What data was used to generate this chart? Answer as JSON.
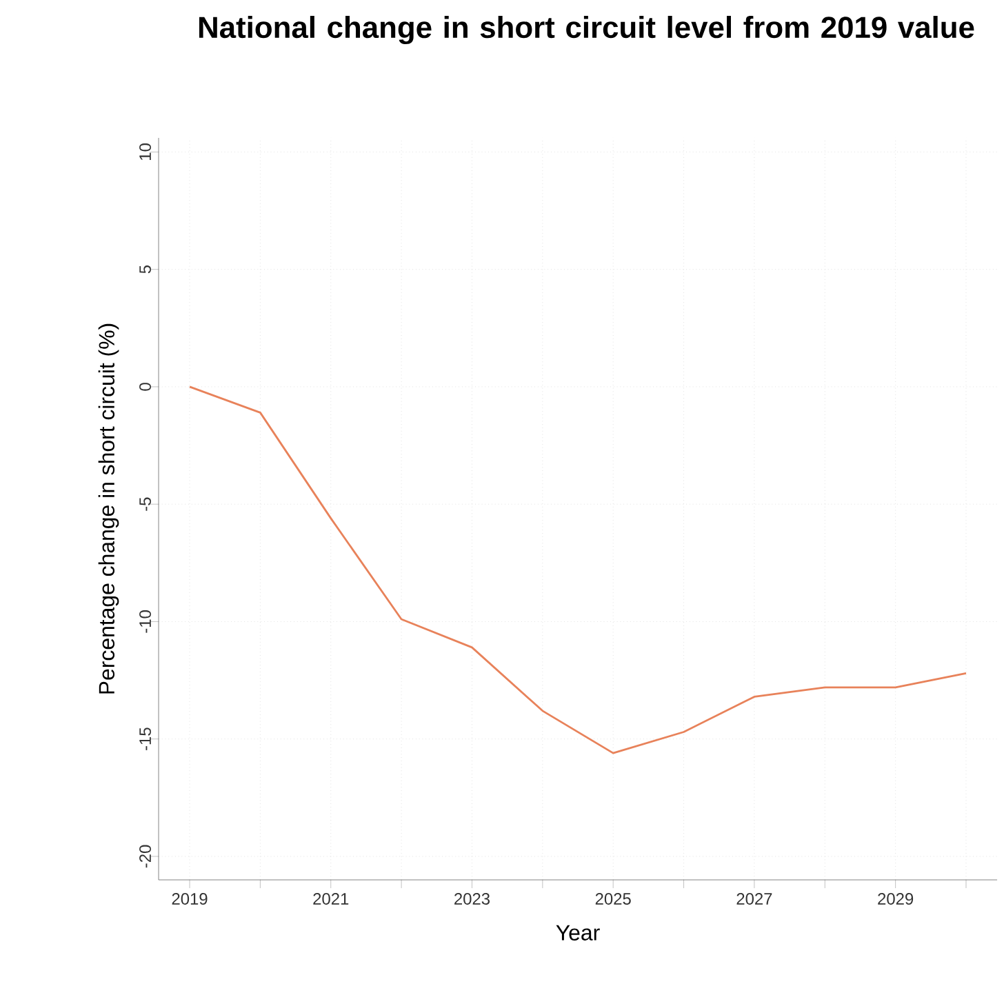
{
  "chart_data": {
    "type": "line",
    "title": "National change in short circuit level from 2019 value",
    "xlabel": "Year",
    "ylabel": "Percentage change in short circuit (%)",
    "x": [
      2019,
      2020,
      2021,
      2022,
      2023,
      2024,
      2025,
      2026,
      2027,
      2028,
      2029,
      2030
    ],
    "series": [
      {
        "color": "#e8825a",
        "values": [
          0,
          -1.1,
          -5.6,
          -9.9,
          -11.1,
          -13.8,
          -15.6,
          -14.7,
          -13.2,
          -12.8,
          -12.8,
          -12.2
        ]
      }
    ],
    "xlim": [
      2018.56,
      2030.44
    ],
    "ylim": [
      -21,
      10.6
    ],
    "xticks": [
      2019,
      {
        "value": 2020,
        "label": null
      },
      2021,
      {
        "value": 2022,
        "label": null
      },
      2023,
      {
        "value": 2024,
        "label": null
      },
      2025,
      {
        "value": 2026,
        "label": null
      },
      2027,
      {
        "value": 2028,
        "label": null
      },
      2029,
      {
        "value": 2030,
        "label": null
      }
    ],
    "yticks": [
      -20,
      -15,
      -10,
      -5,
      0,
      5,
      10
    ],
    "grid": true,
    "marker": "none",
    "line_style": "solid"
  }
}
